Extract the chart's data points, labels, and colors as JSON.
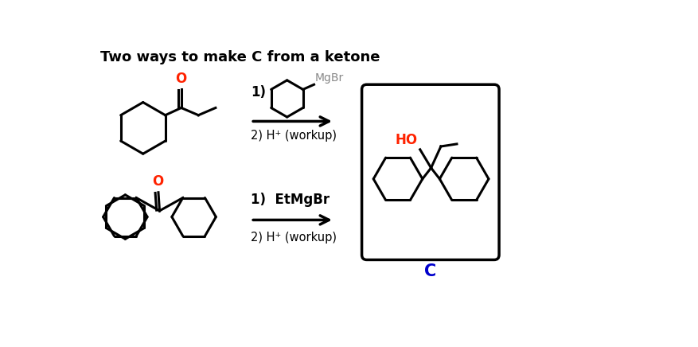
{
  "title": "Two ways to make C from a ketone",
  "title_fontsize": 13,
  "title_fontweight": "bold",
  "bg_color": "#ffffff",
  "text_color": "#000000",
  "red_color": "#ff2200",
  "blue_color": "#0000cc",
  "gray_color": "#888888",
  "reaction1_step1": "1)",
  "reaction1_mgbr": "MgBr",
  "reaction1_step2": "2) H⁺ (workup)",
  "reaction2_step1": "1)  EtMgBr",
  "reaction2_step2": "2) H⁺ (workup)",
  "product_label": "C",
  "ho_label": "HO"
}
